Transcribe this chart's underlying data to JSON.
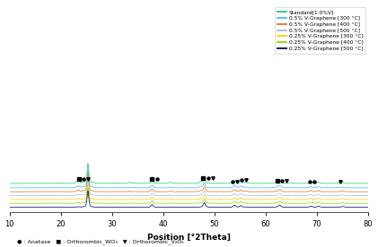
{
  "title": "",
  "xlabel": "Position [°2Theta]",
  "ylabel": "",
  "xlim": [
    10,
    80
  ],
  "ylim": [
    -0.02,
    1.85
  ],
  "legend_entries": [
    "Standard[1.0%V]",
    "0.5% V-Graphene [300 °C]",
    "0.5% V-Graphene [400 °C]",
    "0.5% V-Graphene [500 °C]",
    "0.25% V-Graphene [300 °C]",
    "0.25% V-Graphene [400 °C]",
    "0.25% V-Graphene [500 °C]"
  ],
  "line_colors": [
    "#22cc77",
    "#44bbff",
    "#dd7722",
    "#aabbdd",
    "#ffcc00",
    "#88dd00",
    "#000066"
  ],
  "offsets": [
    0.24,
    0.2,
    0.165,
    0.13,
    0.095,
    0.06,
    0.025
  ],
  "background_color": "#ffffff",
  "xticks": [
    10,
    20,
    30,
    40,
    50,
    60,
    70,
    80
  ],
  "annotation_groups": [
    {
      "x": 23.5,
      "markers": [
        "sq",
        "ci",
        "tr"
      ]
    },
    {
      "x": 37.8,
      "markers": [
        "sq",
        "ci"
      ]
    },
    {
      "x": 47.8,
      "markers": [
        "sq",
        "ci",
        "tr"
      ]
    },
    {
      "x": 53.5,
      "markers": [
        "ci",
        "tr"
      ]
    },
    {
      "x": 55.2,
      "markers": [
        "ci",
        "tr"
      ]
    },
    {
      "x": 62.3,
      "markers": [
        "sq",
        "ci",
        "tr"
      ]
    },
    {
      "x": 68.5,
      "markers": [
        "ci",
        "ci"
      ]
    },
    {
      "x": 74.5,
      "markers": [
        "tr"
      ]
    }
  ],
  "bottom_label": "● : Anatase   ■ : Orthorombic_WO₃   ▼ : Orthorombic_V₂O₅"
}
